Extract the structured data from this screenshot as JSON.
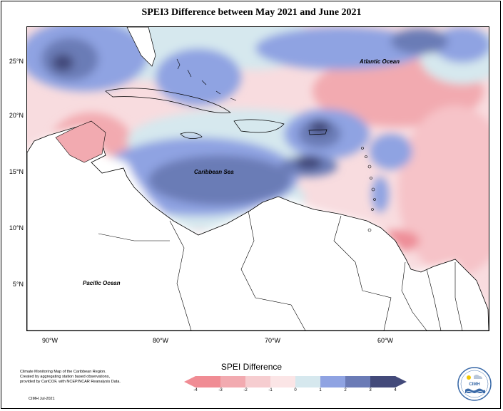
{
  "title": "SPEI3 Difference between May 2021 and June 2021",
  "labels": {
    "atlantic": "Atlantic Ocean",
    "caribbean": "Caribbean Sea",
    "pacific": "Pacific Ocean"
  },
  "lat_ticks": [
    "25°N",
    "20°N",
    "15°N",
    "10°N",
    "5°N"
  ],
  "lon_ticks": [
    "90°W",
    "80°W",
    "70°W",
    "60°W"
  ],
  "credits": {
    "line1": "Climate Monitoring Map of the Caribbean Region.",
    "line2": "Created by aggregating station based observations,",
    "line3": "provided by CariCOF, with NCEP/NCAR Reanalysis Data.",
    "footer": "CIMH Jul-2021"
  },
  "legend": {
    "title": "SPEI Difference",
    "ticks": [
      "-4",
      "-3",
      "-2",
      "-1",
      "0",
      "1",
      "2",
      "3",
      "4"
    ],
    "colors": [
      "#f08c94",
      "#f2aab0",
      "#f6cdd0",
      "#fbe5e6",
      "#d6e8ee",
      "#b6c9ee",
      "#8fa3e2",
      "#6b7bb6",
      "#434a7a"
    ]
  },
  "logo": {
    "text": "CIMH"
  }
}
